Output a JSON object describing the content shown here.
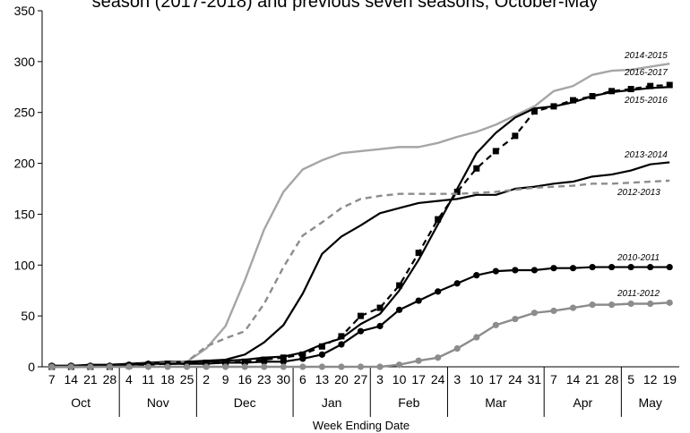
{
  "chart_data": {
    "type": "line",
    "title": "season (2017-2018) and previous seven seasons, October-May",
    "xlabel": "Week Ending Date",
    "ylabel": "",
    "ylim": [
      0,
      350
    ],
    "yticks": [
      0,
      50,
      100,
      150,
      200,
      250,
      300,
      350
    ],
    "grid": false,
    "week_labels": [
      "7",
      "14",
      "21",
      "28",
      "4",
      "11",
      "18",
      "25",
      "2",
      "9",
      "16",
      "23",
      "30",
      "6",
      "13",
      "20",
      "27",
      "3",
      "10",
      "17",
      "24",
      "3",
      "10",
      "17",
      "24",
      "31",
      "7",
      "14",
      "21",
      "28",
      "5",
      "12",
      "19"
    ],
    "months": [
      {
        "label": "Oct",
        "start": 0,
        "end": 3
      },
      {
        "label": "Nov",
        "start": 4,
        "end": 7
      },
      {
        "label": "Dec",
        "start": 8,
        "end": 12
      },
      {
        "label": "Jan",
        "start": 13,
        "end": 16
      },
      {
        "label": "Feb",
        "start": 17,
        "end": 20
      },
      {
        "label": "Mar",
        "start": 21,
        "end": 25
      },
      {
        "label": "Apr",
        "start": 26,
        "end": 29
      },
      {
        "label": "May",
        "start": 30,
        "end": 32
      }
    ],
    "series": [
      {
        "name": "2014-2015",
        "color": "#a6a6a6",
        "dash": "solid",
        "marker": "none",
        "values": [
          0,
          0,
          0,
          1,
          2,
          3,
          4,
          5,
          18,
          40,
          85,
          135,
          172,
          194,
          203,
          210,
          212,
          214,
          216,
          216,
          220,
          226,
          231,
          238,
          247,
          256,
          271,
          276,
          287,
          291,
          292,
          295,
          298
        ],
        "label_at": [
          697,
          65
        ]
      },
      {
        "name": "2016-2017",
        "color": "#000000",
        "dash": "dashed",
        "marker": "square",
        "values": [
          0,
          0,
          0,
          0,
          1,
          2,
          3,
          3,
          4,
          4,
          5,
          7,
          9,
          12,
          20,
          30,
          50,
          58,
          80,
          112,
          145,
          172,
          195,
          212,
          227,
          251,
          256,
          262,
          266,
          271,
          273,
          276,
          277
        ],
        "label_at": [
          697,
          84
        ]
      },
      {
        "name": "2015-2016",
        "color": "#000000",
        "dash": "solid",
        "marker": "none",
        "values": [
          0,
          0,
          0,
          1,
          2,
          3,
          4,
          5,
          5,
          6,
          7,
          9,
          10,
          14,
          22,
          28,
          42,
          52,
          75,
          105,
          140,
          175,
          210,
          230,
          245,
          254,
          256,
          260,
          266,
          270,
          272,
          274,
          275
        ],
        "label_at": [
          697,
          115
        ]
      },
      {
        "name": "2013-2014",
        "color": "#000000",
        "dash": "solid",
        "marker": "none",
        "values": [
          1,
          1,
          2,
          2,
          3,
          4,
          5,
          5,
          6,
          7,
          12,
          24,
          41,
          72,
          111,
          128,
          139,
          151,
          156,
          161,
          163,
          165,
          169,
          169,
          175,
          177,
          180,
          182,
          187,
          189,
          193,
          199,
          201
        ],
        "label_at": [
          697,
          176
        ]
      },
      {
        "name": "2012-2013",
        "color": "#8c8c8c",
        "dash": "dashed",
        "marker": "none",
        "values": [
          0,
          0,
          0,
          1,
          2,
          3,
          4,
          5,
          20,
          28,
          35,
          62,
          98,
          129,
          142,
          156,
          165,
          168,
          170,
          170,
          170,
          170,
          171,
          172,
          174,
          176,
          177,
          178,
          180,
          180,
          181,
          182,
          183
        ],
        "label_at": [
          689,
          218
        ]
      },
      {
        "name": "2010-2011",
        "color": "#000000",
        "dash": "solid",
        "marker": "circle",
        "values": [
          1,
          1,
          1,
          1,
          2,
          3,
          3,
          3,
          3,
          4,
          4,
          5,
          5,
          8,
          12,
          22,
          35,
          40,
          56,
          65,
          74,
          82,
          90,
          94,
          95,
          95,
          97,
          97,
          98,
          98,
          98,
          98,
          98
        ],
        "label_at": [
          689,
          291
        ]
      },
      {
        "name": "2011-2012",
        "color": "#8c8c8c",
        "dash": "solid",
        "marker": "circle",
        "values": [
          0,
          0,
          0,
          0,
          0,
          0,
          0,
          0,
          0,
          0,
          0,
          0,
          0,
          0,
          0,
          0,
          0,
          0,
          2,
          6,
          9,
          18,
          29,
          41,
          47,
          53,
          55,
          58,
          61,
          61,
          62,
          62,
          63
        ],
        "label_at": [
          689,
          331
        ]
      }
    ]
  }
}
